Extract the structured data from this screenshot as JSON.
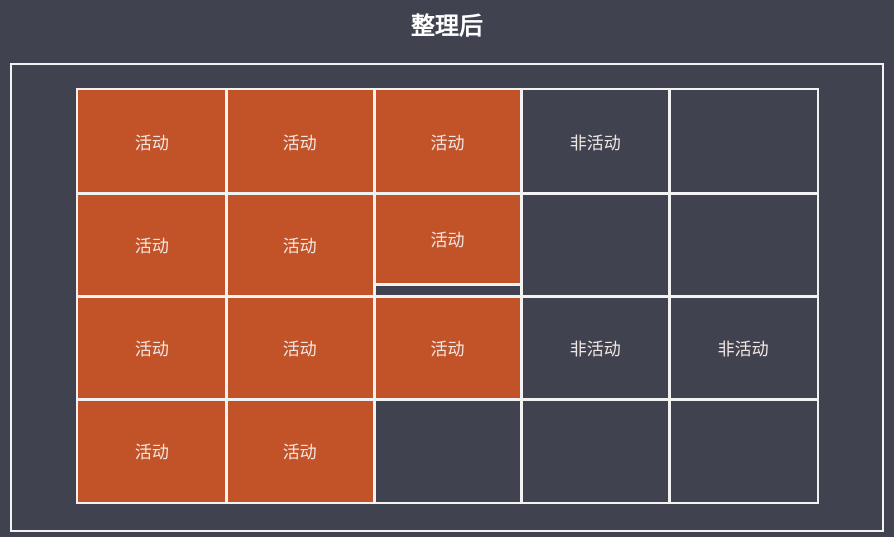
{
  "title": "整理后",
  "colors": {
    "background": "#40434f",
    "active": "#c25228",
    "border": "#f2f2f2"
  },
  "grid": {
    "rows": [
      [
        {
          "state": "active",
          "label": "活动"
        },
        {
          "state": "active",
          "label": "活动"
        },
        {
          "state": "active",
          "label": "活动"
        },
        {
          "state": "inactive",
          "label": "非活动"
        },
        {
          "state": "empty",
          "label": ""
        }
      ],
      [
        {
          "state": "active",
          "label": "活动"
        },
        {
          "state": "active",
          "label": "活动"
        },
        {
          "state": "active",
          "label": "活动",
          "partial": true
        },
        {
          "state": "empty",
          "label": ""
        },
        {
          "state": "empty",
          "label": ""
        }
      ],
      [
        {
          "state": "active",
          "label": "活动"
        },
        {
          "state": "active",
          "label": "活动"
        },
        {
          "state": "active",
          "label": "活动"
        },
        {
          "state": "inactive",
          "label": "非活动"
        },
        {
          "state": "inactive",
          "label": "非活动"
        }
      ],
      [
        {
          "state": "active",
          "label": "活动"
        },
        {
          "state": "active",
          "label": "活动"
        },
        {
          "state": "empty",
          "label": ""
        },
        {
          "state": "empty",
          "label": ""
        },
        {
          "state": "empty",
          "label": ""
        }
      ]
    ]
  }
}
